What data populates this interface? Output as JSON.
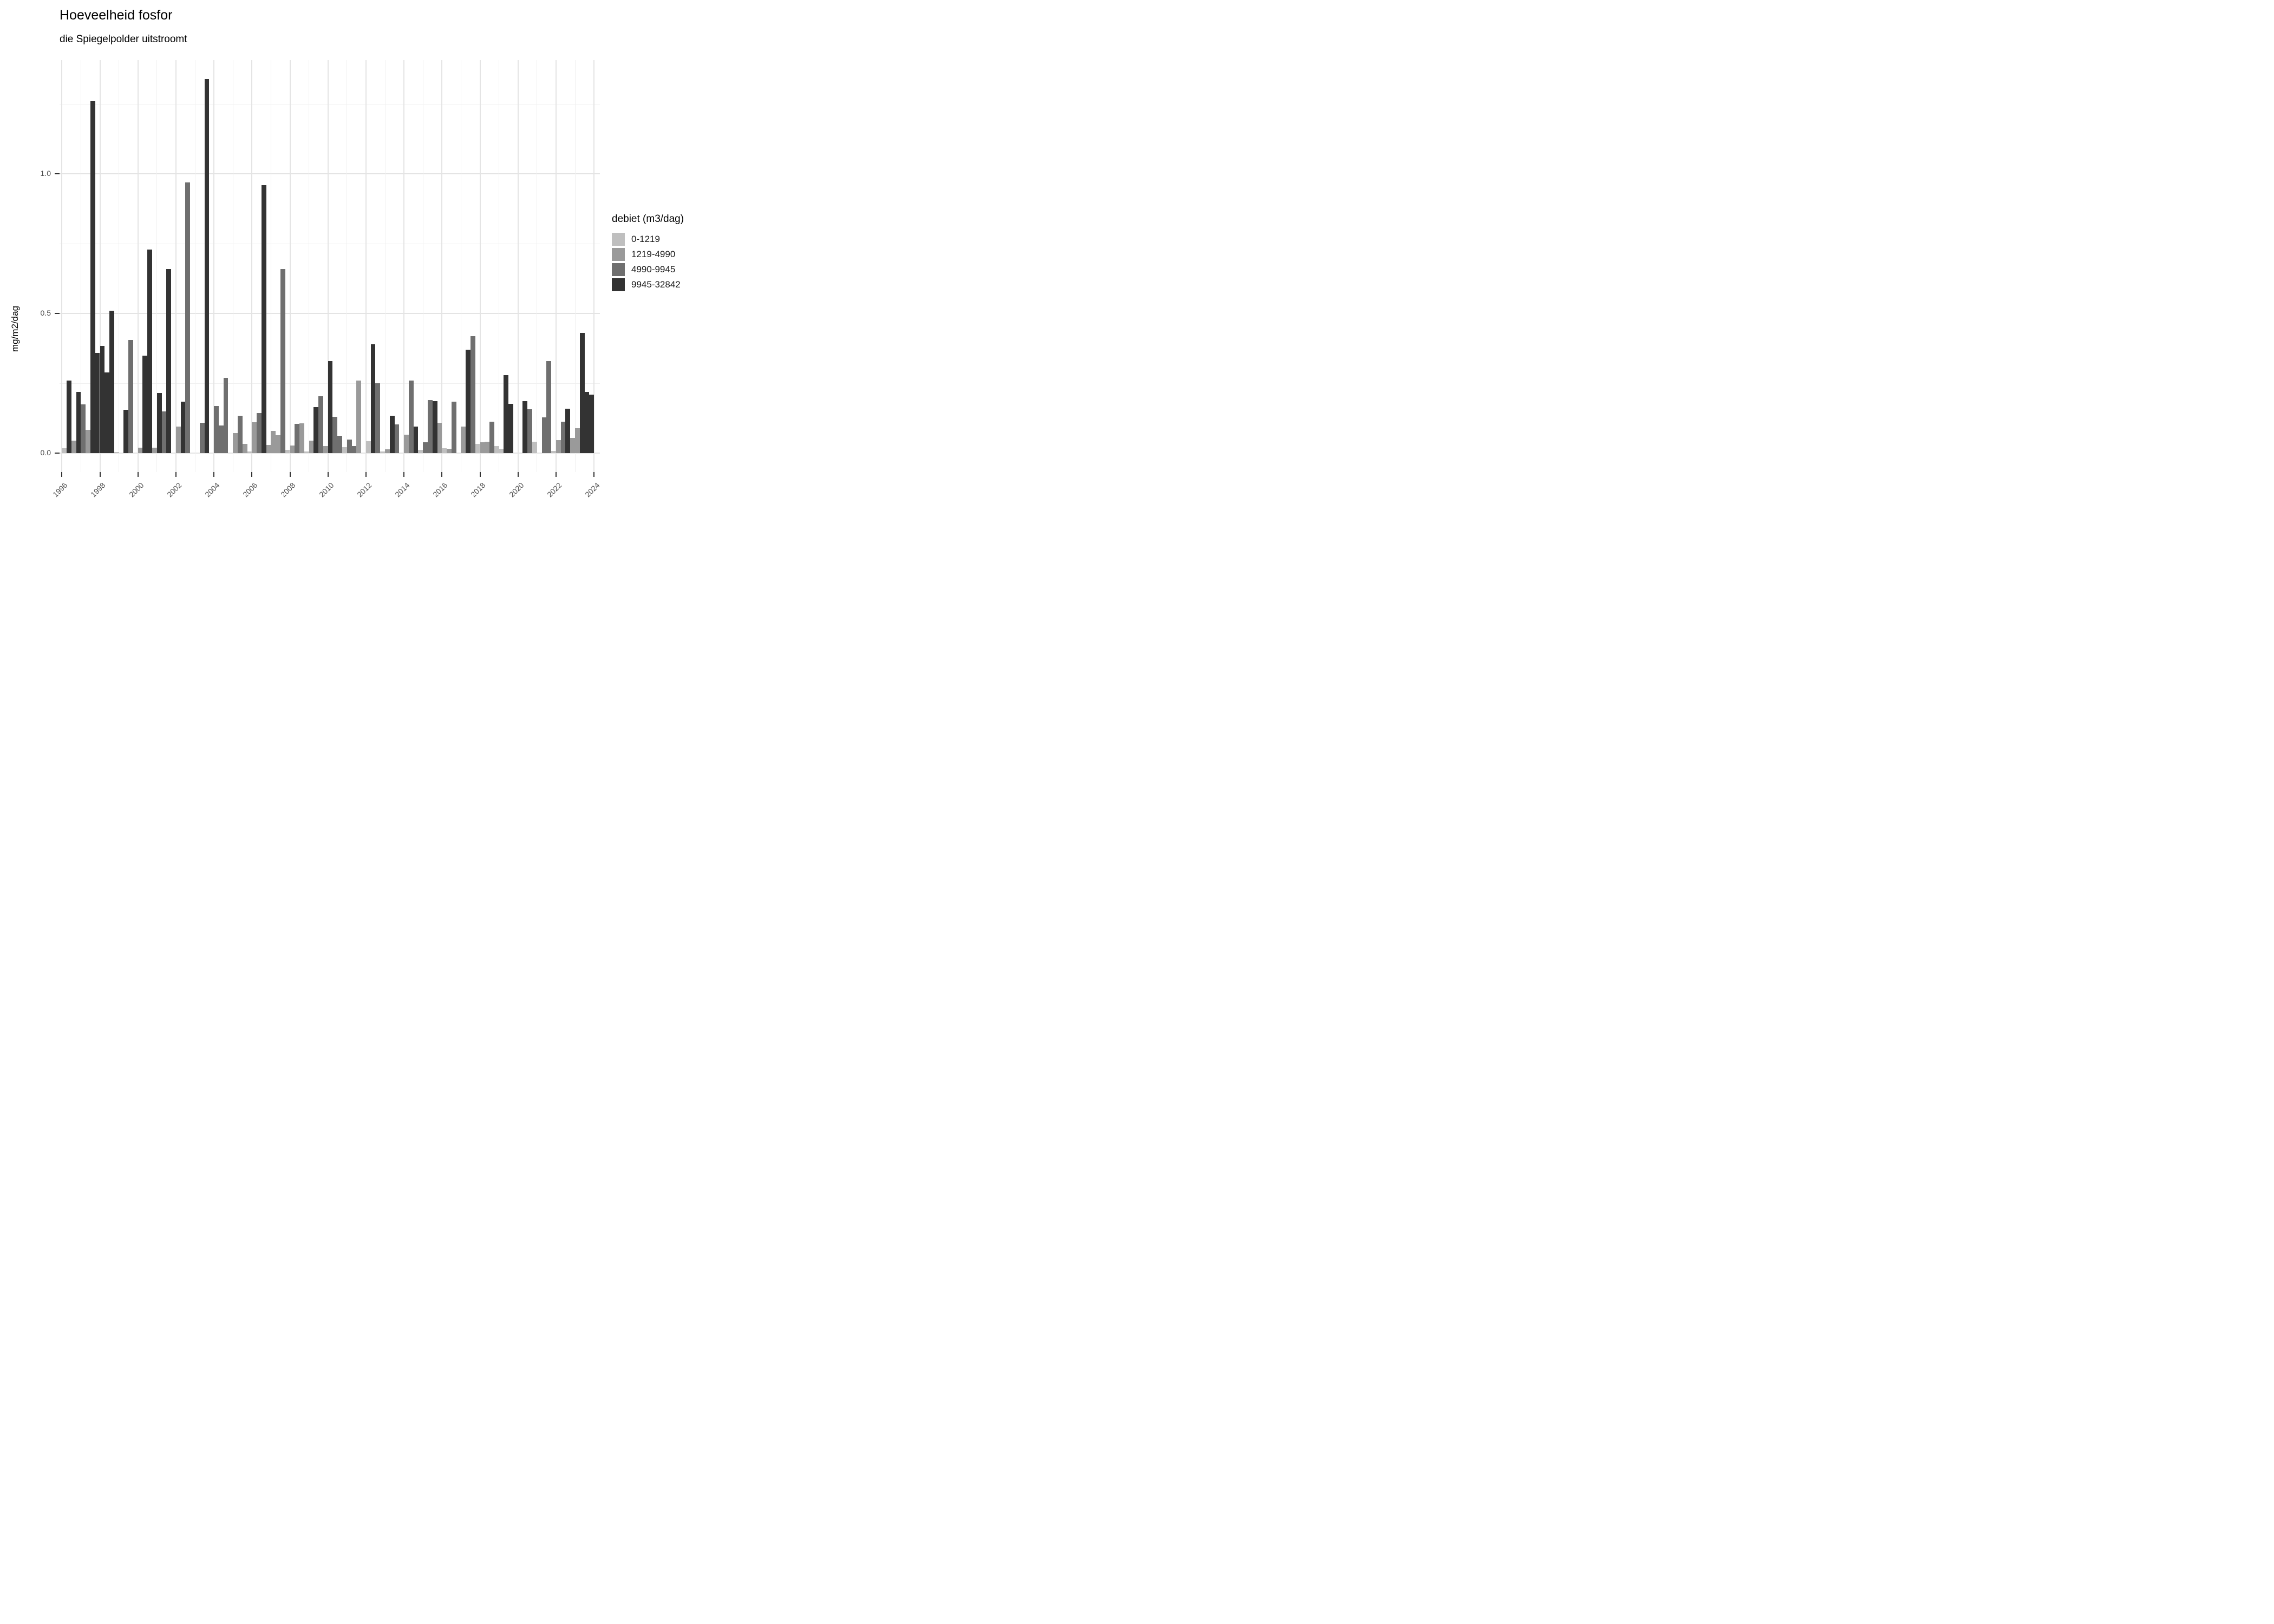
{
  "chart_data": {
    "type": "bar",
    "title": "Hoeveelheid fosfor",
    "subtitle": "die Spiegelpolder uitstroomt",
    "ylabel": "mg/m2/dag",
    "xlabel": "",
    "legend_title": "debiet (m3/dag)",
    "legend_position": "right",
    "grid": "on",
    "ylim": [
      0,
      1.41
    ],
    "y_tick_labels": [
      "0.0",
      "0.5",
      "1.0"
    ],
    "y_tick_values": [
      0,
      0.5,
      1.0
    ],
    "y_minor_gridlines": [
      0.25,
      0.75,
      1.25
    ],
    "x_tick_labels": [
      "1996",
      "1998",
      "2000",
      "2002",
      "2004",
      "2006",
      "2008",
      "2010",
      "2012",
      "2014",
      "2016",
      "2018",
      "2020",
      "2022",
      "2024"
    ],
    "x_year_range": [
      1996,
      2024
    ],
    "categories": [
      {
        "label": "0-1219",
        "color": "#bfbfbf"
      },
      {
        "label": "1219-4990",
        "color": "#9a9a9a"
      },
      {
        "label": "4990-9945",
        "color": "#6f6f6f"
      },
      {
        "label": "9945-32842",
        "color": "#333333"
      }
    ],
    "bars_note": "each bar = one quarter (q 1-4) of a year; cat = index into categories; value in mg/m2/dag",
    "bars": [
      {
        "year": 1996,
        "q": 3,
        "cat": 0,
        "value": 0.018
      },
      {
        "year": 1996,
        "q": 4,
        "cat": 3,
        "value": 0.26
      },
      {
        "year": 1997,
        "q": 1,
        "cat": 1,
        "value": 0.046
      },
      {
        "year": 1997,
        "q": 2,
        "cat": 3,
        "value": 0.22
      },
      {
        "year": 1997,
        "q": 3,
        "cat": 2,
        "value": 0.175
      },
      {
        "year": 1997,
        "q": 4,
        "cat": 1,
        "value": 0.085
      },
      {
        "year": 1998,
        "q": 1,
        "cat": 3,
        "value": 1.26
      },
      {
        "year": 1998,
        "q": 2,
        "cat": 3,
        "value": 0.36
      },
      {
        "year": 1998,
        "q": 3,
        "cat": 3,
        "value": 0.385
      },
      {
        "year": 1998,
        "q": 4,
        "cat": 3,
        "value": 0.29
      },
      {
        "year": 1999,
        "q": 1,
        "cat": 3,
        "value": 0.51
      },
      {
        "year": 1999,
        "q": 2,
        "cat": 0,
        "value": 0.005
      },
      {
        "year": 1999,
        "q": 4,
        "cat": 3,
        "value": 0.155
      },
      {
        "year": 2000,
        "q": 1,
        "cat": 2,
        "value": 0.405
      },
      {
        "year": 2000,
        "q": 3,
        "cat": 1,
        "value": 0.02
      },
      {
        "year": 2000,
        "q": 4,
        "cat": 3,
        "value": 0.35
      },
      {
        "year": 2001,
        "q": 1,
        "cat": 3,
        "value": 0.73
      },
      {
        "year": 2001,
        "q": 2,
        "cat": 1,
        "value": 0.02
      },
      {
        "year": 2001,
        "q": 3,
        "cat": 3,
        "value": 0.215
      },
      {
        "year": 2001,
        "q": 4,
        "cat": 2,
        "value": 0.15
      },
      {
        "year": 2002,
        "q": 1,
        "cat": 3,
        "value": 0.66
      },
      {
        "year": 2002,
        "q": 3,
        "cat": 1,
        "value": 0.095
      },
      {
        "year": 2002,
        "q": 4,
        "cat": 3,
        "value": 0.185
      },
      {
        "year": 2003,
        "q": 1,
        "cat": 2,
        "value": 0.97
      },
      {
        "year": 2003,
        "q": 4,
        "cat": 2,
        "value": 0.11
      },
      {
        "year": 2004,
        "q": 1,
        "cat": 3,
        "value": 1.34
      },
      {
        "year": 2004,
        "q": 3,
        "cat": 2,
        "value": 0.17
      },
      {
        "year": 2004,
        "q": 4,
        "cat": 2,
        "value": 0.1
      },
      {
        "year": 2005,
        "q": 1,
        "cat": 2,
        "value": 0.27
      },
      {
        "year": 2005,
        "q": 3,
        "cat": 1,
        "value": 0.072
      },
      {
        "year": 2005,
        "q": 4,
        "cat": 2,
        "value": 0.135
      },
      {
        "year": 2006,
        "q": 1,
        "cat": 1,
        "value": 0.033
      },
      {
        "year": 2006,
        "q": 2,
        "cat": 0,
        "value": 0.006
      },
      {
        "year": 2006,
        "q": 3,
        "cat": 1,
        "value": 0.112
      },
      {
        "year": 2006,
        "q": 4,
        "cat": 2,
        "value": 0.145
      },
      {
        "year": 2007,
        "q": 1,
        "cat": 3,
        "value": 0.96
      },
      {
        "year": 2007,
        "q": 2,
        "cat": 1,
        "value": 0.03
      },
      {
        "year": 2007,
        "q": 3,
        "cat": 1,
        "value": 0.08
      },
      {
        "year": 2007,
        "q": 4,
        "cat": 1,
        "value": 0.065
      },
      {
        "year": 2008,
        "q": 1,
        "cat": 2,
        "value": 0.66
      },
      {
        "year": 2008,
        "q": 2,
        "cat": 0,
        "value": 0.013
      },
      {
        "year": 2008,
        "q": 3,
        "cat": 1,
        "value": 0.027
      },
      {
        "year": 2008,
        "q": 4,
        "cat": 2,
        "value": 0.105
      },
      {
        "year": 2009,
        "q": 1,
        "cat": 1,
        "value": 0.108
      },
      {
        "year": 2009,
        "q": 2,
        "cat": 0,
        "value": 0.006
      },
      {
        "year": 2009,
        "q": 3,
        "cat": 1,
        "value": 0.045
      },
      {
        "year": 2009,
        "q": 4,
        "cat": 3,
        "value": 0.165
      },
      {
        "year": 2010,
        "q": 1,
        "cat": 2,
        "value": 0.205
      },
      {
        "year": 2010,
        "q": 2,
        "cat": 1,
        "value": 0.026
      },
      {
        "year": 2010,
        "q": 3,
        "cat": 3,
        "value": 0.33
      },
      {
        "year": 2010,
        "q": 4,
        "cat": 2,
        "value": 0.13
      },
      {
        "year": 2011,
        "q": 1,
        "cat": 2,
        "value": 0.062
      },
      {
        "year": 2011,
        "q": 2,
        "cat": 0,
        "value": 0.022
      },
      {
        "year": 2011,
        "q": 3,
        "cat": 2,
        "value": 0.05
      },
      {
        "year": 2011,
        "q": 4,
        "cat": 2,
        "value": 0.025
      },
      {
        "year": 2012,
        "q": 1,
        "cat": 1,
        "value": 0.26
      },
      {
        "year": 2012,
        "q": 3,
        "cat": 0,
        "value": 0.043
      },
      {
        "year": 2012,
        "q": 4,
        "cat": 3,
        "value": 0.39
      },
      {
        "year": 2013,
        "q": 1,
        "cat": 2,
        "value": 0.25
      },
      {
        "year": 2013,
        "q": 2,
        "cat": 0,
        "value": 0.006
      },
      {
        "year": 2013,
        "q": 3,
        "cat": 1,
        "value": 0.015
      },
      {
        "year": 2013,
        "q": 4,
        "cat": 3,
        "value": 0.135
      },
      {
        "year": 2014,
        "q": 1,
        "cat": 2,
        "value": 0.104
      },
      {
        "year": 2014,
        "q": 3,
        "cat": 1,
        "value": 0.066
      },
      {
        "year": 2014,
        "q": 4,
        "cat": 2,
        "value": 0.26
      },
      {
        "year": 2015,
        "q": 1,
        "cat": 3,
        "value": 0.095
      },
      {
        "year": 2015,
        "q": 2,
        "cat": 0,
        "value": 0.012
      },
      {
        "year": 2015,
        "q": 3,
        "cat": 2,
        "value": 0.04
      },
      {
        "year": 2015,
        "q": 4,
        "cat": 2,
        "value": 0.19
      },
      {
        "year": 2016,
        "q": 1,
        "cat": 3,
        "value": 0.187
      },
      {
        "year": 2016,
        "q": 2,
        "cat": 1,
        "value": 0.11
      },
      {
        "year": 2016,
        "q": 3,
        "cat": 0,
        "value": 0.018
      },
      {
        "year": 2016,
        "q": 4,
        "cat": 1,
        "value": 0.017
      },
      {
        "year": 2017,
        "q": 1,
        "cat": 2,
        "value": 0.185
      },
      {
        "year": 2017,
        "q": 3,
        "cat": 1,
        "value": 0.096
      },
      {
        "year": 2017,
        "q": 4,
        "cat": 3,
        "value": 0.37
      },
      {
        "year": 2018,
        "q": 1,
        "cat": 2,
        "value": 0.42
      },
      {
        "year": 2018,
        "q": 2,
        "cat": 0,
        "value": 0.034
      },
      {
        "year": 2018,
        "q": 3,
        "cat": 1,
        "value": 0.04
      },
      {
        "year": 2018,
        "q": 4,
        "cat": 1,
        "value": 0.042
      },
      {
        "year": 2019,
        "q": 1,
        "cat": 2,
        "value": 0.114
      },
      {
        "year": 2019,
        "q": 2,
        "cat": 0,
        "value": 0.025
      },
      {
        "year": 2019,
        "q": 3,
        "cat": 0,
        "value": 0.016
      },
      {
        "year": 2019,
        "q": 4,
        "cat": 3,
        "value": 0.28
      },
      {
        "year": 2020,
        "q": 1,
        "cat": 3,
        "value": 0.178
      },
      {
        "year": 2020,
        "q": 4,
        "cat": 3,
        "value": 0.187
      },
      {
        "year": 2021,
        "q": 1,
        "cat": 2,
        "value": 0.157
      },
      {
        "year": 2021,
        "q": 2,
        "cat": 0,
        "value": 0.041
      },
      {
        "year": 2021,
        "q": 4,
        "cat": 2,
        "value": 0.128
      },
      {
        "year": 2022,
        "q": 1,
        "cat": 2,
        "value": 0.33
      },
      {
        "year": 2022,
        "q": 2,
        "cat": 0,
        "value": 0.008
      },
      {
        "year": 2022,
        "q": 3,
        "cat": 1,
        "value": 0.047
      },
      {
        "year": 2022,
        "q": 4,
        "cat": 2,
        "value": 0.113
      },
      {
        "year": 2023,
        "q": 1,
        "cat": 3,
        "value": 0.16
      },
      {
        "year": 2023,
        "q": 2,
        "cat": 1,
        "value": 0.055
      },
      {
        "year": 2023,
        "q": 3,
        "cat": 1,
        "value": 0.09
      },
      {
        "year": 2023,
        "q": 4,
        "cat": 3,
        "value": 0.43
      },
      {
        "year": 2024,
        "q": 1,
        "cat": 3,
        "value": 0.22
      },
      {
        "year": 2024,
        "q": 2,
        "cat": 3,
        "value": 0.21
      }
    ]
  }
}
